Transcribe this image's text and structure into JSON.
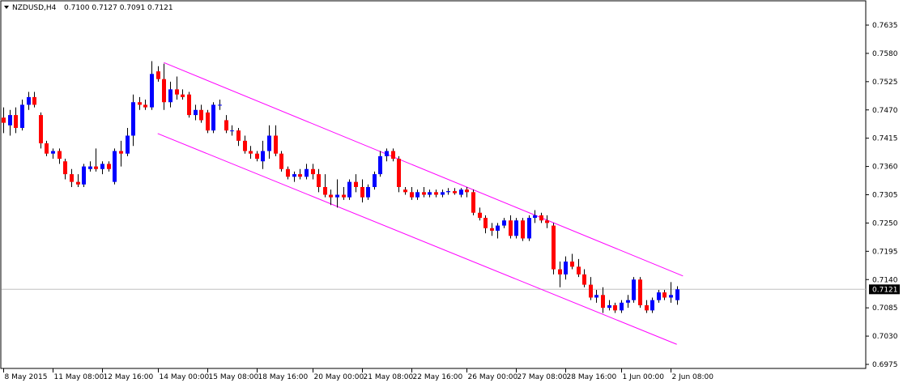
{
  "header": {
    "symbol_timeframe": "NZDUSD,H4",
    "ohlc": "0.7100 0.7127 0.7091 0.7121"
  },
  "colors": {
    "bull": "#0000FF",
    "bear": "#FF0000",
    "wick": "#000000",
    "channel": "#FF00FF",
    "bid_line": "#C0C0C0",
    "price_label_bg": "#000000",
    "price_label_fg": "#FFFFFF"
  },
  "chart_data": {
    "type": "candlestick",
    "title": "NZDUSD,H4",
    "ylim": [
      0.6975,
      0.7665
    ],
    "y_ticks": [
      "0.7635",
      "0.7580",
      "0.7525",
      "0.7470",
      "0.7415",
      "0.7360",
      "0.7305",
      "0.7250",
      "0.7195",
      "0.7140",
      "0.7085",
      "0.7030",
      "0.6975"
    ],
    "x_ticks": [
      "8 May 2015",
      "11 May 08:00",
      "12 May 16:00",
      "14 May 00:00",
      "15 May 08:00",
      "18 May 16:00",
      "20 May 00:00",
      "21 May 08:00",
      "22 May 16:00",
      "26 May 00:00",
      "27 May 08:00",
      "28 May 16:00",
      "1 Jun 00:00",
      "2 Jun 08:00"
    ],
    "current_price": "0.7121",
    "grid": false,
    "candles": [
      {
        "o": 0.7455,
        "h": 0.7475,
        "l": 0.7425,
        "c": 0.7445
      },
      {
        "o": 0.744,
        "h": 0.747,
        "l": 0.742,
        "c": 0.746
      },
      {
        "o": 0.746,
        "h": 0.7475,
        "l": 0.7425,
        "c": 0.7435
      },
      {
        "o": 0.7435,
        "h": 0.749,
        "l": 0.743,
        "c": 0.748
      },
      {
        "o": 0.748,
        "h": 0.7505,
        "l": 0.747,
        "c": 0.7495
      },
      {
        "o": 0.7495,
        "h": 0.7505,
        "l": 0.7475,
        "c": 0.748
      },
      {
        "o": 0.746,
        "h": 0.7465,
        "l": 0.7395,
        "c": 0.7405
      },
      {
        "o": 0.7405,
        "h": 0.741,
        "l": 0.738,
        "c": 0.7385
      },
      {
        "o": 0.7385,
        "h": 0.7395,
        "l": 0.7375,
        "c": 0.739
      },
      {
        "o": 0.739,
        "h": 0.7395,
        "l": 0.7365,
        "c": 0.7375
      },
      {
        "o": 0.737,
        "h": 0.7375,
        "l": 0.7335,
        "c": 0.7345
      },
      {
        "o": 0.7345,
        "h": 0.7355,
        "l": 0.732,
        "c": 0.733
      },
      {
        "o": 0.733,
        "h": 0.7345,
        "l": 0.732,
        "c": 0.7325
      },
      {
        "o": 0.7325,
        "h": 0.7365,
        "l": 0.732,
        "c": 0.736
      },
      {
        "o": 0.7355,
        "h": 0.737,
        "l": 0.735,
        "c": 0.736
      },
      {
        "o": 0.736,
        "h": 0.7395,
        "l": 0.735,
        "c": 0.7355
      },
      {
        "o": 0.7355,
        "h": 0.737,
        "l": 0.7345,
        "c": 0.7365
      },
      {
        "o": 0.7365,
        "h": 0.737,
        "l": 0.735,
        "c": 0.7355
      },
      {
        "o": 0.733,
        "h": 0.7395,
        "l": 0.7325,
        "c": 0.739
      },
      {
        "o": 0.739,
        "h": 0.741,
        "l": 0.736,
        "c": 0.7385
      },
      {
        "o": 0.7385,
        "h": 0.7435,
        "l": 0.738,
        "c": 0.742
      },
      {
        "o": 0.742,
        "h": 0.75,
        "l": 0.74,
        "c": 0.7485
      },
      {
        "o": 0.7485,
        "h": 0.7495,
        "l": 0.747,
        "c": 0.748
      },
      {
        "o": 0.748,
        "h": 0.749,
        "l": 0.747,
        "c": 0.7475
      },
      {
        "o": 0.7475,
        "h": 0.7565,
        "l": 0.747,
        "c": 0.754
      },
      {
        "o": 0.7545,
        "h": 0.7555,
        "l": 0.7525,
        "c": 0.753
      },
      {
        "o": 0.753,
        "h": 0.756,
        "l": 0.747,
        "c": 0.7485
      },
      {
        "o": 0.7485,
        "h": 0.7525,
        "l": 0.7475,
        "c": 0.751
      },
      {
        "o": 0.751,
        "h": 0.7535,
        "l": 0.749,
        "c": 0.75
      },
      {
        "o": 0.75,
        "h": 0.751,
        "l": 0.749,
        "c": 0.7495
      },
      {
        "o": 0.75,
        "h": 0.7505,
        "l": 0.7455,
        "c": 0.746
      },
      {
        "o": 0.746,
        "h": 0.748,
        "l": 0.745,
        "c": 0.747
      },
      {
        "o": 0.747,
        "h": 0.748,
        "l": 0.7445,
        "c": 0.745
      },
      {
        "o": 0.7465,
        "h": 0.747,
        "l": 0.7425,
        "c": 0.743
      },
      {
        "o": 0.743,
        "h": 0.7485,
        "l": 0.7425,
        "c": 0.748
      },
      {
        "o": 0.748,
        "h": 0.749,
        "l": 0.747,
        "c": 0.748
      },
      {
        "o": 0.745,
        "h": 0.746,
        "l": 0.7425,
        "c": 0.743
      },
      {
        "o": 0.743,
        "h": 0.744,
        "l": 0.742,
        "c": 0.743
      },
      {
        "o": 0.743,
        "h": 0.7435,
        "l": 0.74,
        "c": 0.741
      },
      {
        "o": 0.741,
        "h": 0.742,
        "l": 0.7385,
        "c": 0.739
      },
      {
        "o": 0.739,
        "h": 0.74,
        "l": 0.7375,
        "c": 0.7385
      },
      {
        "o": 0.7385,
        "h": 0.739,
        "l": 0.737,
        "c": 0.7375
      },
      {
        "o": 0.737,
        "h": 0.741,
        "l": 0.7355,
        "c": 0.739
      },
      {
        "o": 0.739,
        "h": 0.744,
        "l": 0.7375,
        "c": 0.742
      },
      {
        "o": 0.742,
        "h": 0.744,
        "l": 0.738,
        "c": 0.7385
      },
      {
        "o": 0.7385,
        "h": 0.739,
        "l": 0.735,
        "c": 0.7355
      },
      {
        "o": 0.7355,
        "h": 0.736,
        "l": 0.7335,
        "c": 0.734
      },
      {
        "o": 0.734,
        "h": 0.735,
        "l": 0.733,
        "c": 0.7345
      },
      {
        "o": 0.7345,
        "h": 0.7355,
        "l": 0.7335,
        "c": 0.734
      },
      {
        "o": 0.734,
        "h": 0.7365,
        "l": 0.7335,
        "c": 0.7355
      },
      {
        "o": 0.7355,
        "h": 0.7365,
        "l": 0.7335,
        "c": 0.7345
      },
      {
        "o": 0.7345,
        "h": 0.7355,
        "l": 0.731,
        "c": 0.732
      },
      {
        "o": 0.732,
        "h": 0.7345,
        "l": 0.73,
        "c": 0.7305
      },
      {
        "o": 0.7305,
        "h": 0.7315,
        "l": 0.7285,
        "c": 0.73
      },
      {
        "o": 0.73,
        "h": 0.7335,
        "l": 0.728,
        "c": 0.7305
      },
      {
        "o": 0.7305,
        "h": 0.732,
        "l": 0.7295,
        "c": 0.73
      },
      {
        "o": 0.73,
        "h": 0.7335,
        "l": 0.7295,
        "c": 0.733
      },
      {
        "o": 0.733,
        "h": 0.7345,
        "l": 0.731,
        "c": 0.732
      },
      {
        "o": 0.732,
        "h": 0.7335,
        "l": 0.729,
        "c": 0.73
      },
      {
        "o": 0.73,
        "h": 0.7325,
        "l": 0.7295,
        "c": 0.732
      },
      {
        "o": 0.732,
        "h": 0.735,
        "l": 0.7315,
        "c": 0.7345
      },
      {
        "o": 0.7345,
        "h": 0.739,
        "l": 0.734,
        "c": 0.738
      },
      {
        "o": 0.738,
        "h": 0.7395,
        "l": 0.737,
        "c": 0.739
      },
      {
        "o": 0.739,
        "h": 0.7395,
        "l": 0.737,
        "c": 0.7375
      },
      {
        "o": 0.7375,
        "h": 0.738,
        "l": 0.731,
        "c": 0.732
      },
      {
        "o": 0.7315,
        "h": 0.732,
        "l": 0.7305,
        "c": 0.731
      },
      {
        "o": 0.731,
        "h": 0.732,
        "l": 0.7295,
        "c": 0.73
      },
      {
        "o": 0.73,
        "h": 0.7315,
        "l": 0.7295,
        "c": 0.731
      },
      {
        "o": 0.731,
        "h": 0.732,
        "l": 0.73,
        "c": 0.7305
      },
      {
        "o": 0.7305,
        "h": 0.7315,
        "l": 0.73,
        "c": 0.731
      },
      {
        "o": 0.731,
        "h": 0.7315,
        "l": 0.73,
        "c": 0.7305
      },
      {
        "o": 0.7305,
        "h": 0.7315,
        "l": 0.73,
        "c": 0.731
      },
      {
        "o": 0.731,
        "h": 0.7318,
        "l": 0.7305,
        "c": 0.7312
      },
      {
        "o": 0.7312,
        "h": 0.7318,
        "l": 0.7305,
        "c": 0.7308
      },
      {
        "o": 0.7305,
        "h": 0.7318,
        "l": 0.73,
        "c": 0.7315
      },
      {
        "o": 0.7315,
        "h": 0.732,
        "l": 0.73,
        "c": 0.731
      },
      {
        "o": 0.731,
        "h": 0.7315,
        "l": 0.7265,
        "c": 0.727
      },
      {
        "o": 0.727,
        "h": 0.728,
        "l": 0.7255,
        "c": 0.726
      },
      {
        "o": 0.726,
        "h": 0.7265,
        "l": 0.723,
        "c": 0.724
      },
      {
        "o": 0.724,
        "h": 0.725,
        "l": 0.7225,
        "c": 0.7235
      },
      {
        "o": 0.7235,
        "h": 0.725,
        "l": 0.722,
        "c": 0.7245
      },
      {
        "o": 0.7245,
        "h": 0.726,
        "l": 0.724,
        "c": 0.7255
      },
      {
        "o": 0.7255,
        "h": 0.7265,
        "l": 0.722,
        "c": 0.7225
      },
      {
        "o": 0.7225,
        "h": 0.726,
        "l": 0.722,
        "c": 0.7255
      },
      {
        "o": 0.7255,
        "h": 0.726,
        "l": 0.7215,
        "c": 0.722
      },
      {
        "o": 0.722,
        "h": 0.7265,
        "l": 0.7215,
        "c": 0.726
      },
      {
        "o": 0.726,
        "h": 0.7275,
        "l": 0.725,
        "c": 0.7265
      },
      {
        "o": 0.7265,
        "h": 0.727,
        "l": 0.725,
        "c": 0.7255
      },
      {
        "o": 0.7255,
        "h": 0.7265,
        "l": 0.724,
        "c": 0.725
      },
      {
        "o": 0.7245,
        "h": 0.725,
        "l": 0.715,
        "c": 0.716
      },
      {
        "o": 0.716,
        "h": 0.7175,
        "l": 0.7125,
        "c": 0.715
      },
      {
        "o": 0.715,
        "h": 0.7185,
        "l": 0.714,
        "c": 0.7175
      },
      {
        "o": 0.7175,
        "h": 0.719,
        "l": 0.716,
        "c": 0.7165
      },
      {
        "o": 0.7165,
        "h": 0.718,
        "l": 0.7145,
        "c": 0.715
      },
      {
        "o": 0.715,
        "h": 0.716,
        "l": 0.7125,
        "c": 0.713
      },
      {
        "o": 0.713,
        "h": 0.7145,
        "l": 0.71,
        "c": 0.7105
      },
      {
        "o": 0.7105,
        "h": 0.712,
        "l": 0.7095,
        "c": 0.711
      },
      {
        "o": 0.711,
        "h": 0.7125,
        "l": 0.7075,
        "c": 0.7085
      },
      {
        "o": 0.7085,
        "h": 0.71,
        "l": 0.708,
        "c": 0.709
      },
      {
        "o": 0.709,
        "h": 0.7095,
        "l": 0.7075,
        "c": 0.708
      },
      {
        "o": 0.708,
        "h": 0.71,
        "l": 0.7075,
        "c": 0.7095
      },
      {
        "o": 0.7095,
        "h": 0.711,
        "l": 0.7085,
        "c": 0.71
      },
      {
        "o": 0.71,
        "h": 0.7145,
        "l": 0.7095,
        "c": 0.714
      },
      {
        "o": 0.714,
        "h": 0.7145,
        "l": 0.7085,
        "c": 0.709
      },
      {
        "o": 0.709,
        "h": 0.71,
        "l": 0.7075,
        "c": 0.708
      },
      {
        "o": 0.708,
        "h": 0.7105,
        "l": 0.7075,
        "c": 0.71
      },
      {
        "o": 0.71,
        "h": 0.712,
        "l": 0.7095,
        "c": 0.7115
      },
      {
        "o": 0.7115,
        "h": 0.712,
        "l": 0.71,
        "c": 0.7105
      },
      {
        "o": 0.7105,
        "h": 0.7135,
        "l": 0.7095,
        "c": 0.711
      },
      {
        "o": 0.71,
        "h": 0.7127,
        "l": 0.7091,
        "c": 0.7121
      }
    ],
    "channel_lines": [
      {
        "from_index": 26,
        "from_price": 0.7562,
        "to_index": 110,
        "to_price": 0.7147
      },
      {
        "from_index": 25,
        "from_price": 0.7424,
        "to_index": 109,
        "to_price": 0.7014
      }
    ]
  }
}
